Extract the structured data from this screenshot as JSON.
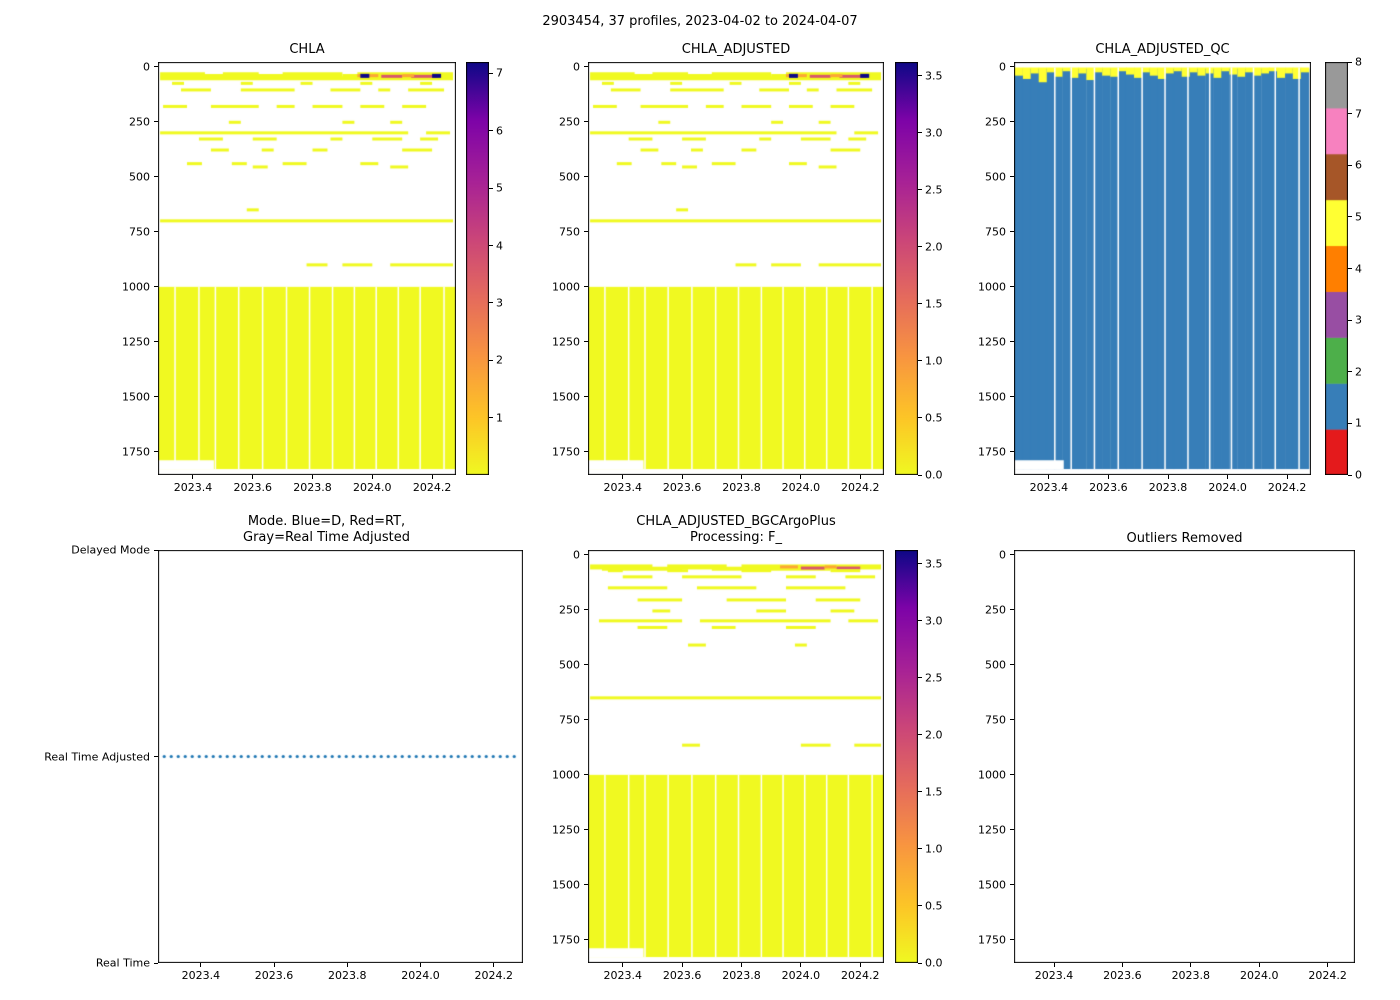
{
  "figure": {
    "suptitle": "2903454, 37 profiles, 2023-04-02 to 2024-04-07",
    "float_id": "2903454",
    "n_profiles": 37,
    "date_start": "2023-04-02",
    "date_end": "2024-04-07"
  },
  "colors": {
    "deep_yellow": "#f0f921",
    "qc_blue": "#377eb8",
    "qc_yellow": "#ffff33",
    "mode_line": "#1f77b4",
    "plasma_r_stops": [
      {
        "t": 0.0,
        "c": "#f0f921"
      },
      {
        "t": 0.14,
        "c": "#fdc527"
      },
      {
        "t": 0.29,
        "c": "#f89441"
      },
      {
        "t": 0.43,
        "c": "#e56b5d"
      },
      {
        "t": 0.57,
        "c": "#cb4679"
      },
      {
        "t": 0.71,
        "c": "#a82296"
      },
      {
        "t": 0.86,
        "c": "#7d03a8"
      },
      {
        "t": 1.0,
        "c": "#0d0887"
      }
    ],
    "qc_palette": [
      "#e41a1c",
      "#377eb8",
      "#4daf4a",
      "#984ea3",
      "#ff7f00",
      "#ffff33",
      "#a65628",
      "#f781bf",
      "#999999"
    ]
  },
  "chart_data": [
    {
      "id": "chla",
      "type": "heatmap",
      "title": "CHLA",
      "x_range": [
        2023.283,
        2024.28
      ],
      "y_range": [
        -22,
        1855
      ],
      "x_ticks": [
        "2023.4",
        "2023.6",
        "2023.8",
        "2024.0",
        "2024.2"
      ],
      "y_ticks": [
        "0",
        "250",
        "500",
        "750",
        "1000",
        "1250",
        "1500",
        "1750"
      ],
      "colorbar": {
        "vmin": 0,
        "vmax": 7.2,
        "ticks": [
          "1",
          "2",
          "3",
          "4",
          "5",
          "6",
          "7"
        ]
      },
      "deep_block": {
        "top": 1000,
        "bottom": 1828,
        "color": "#f0f921"
      },
      "notch": {
        "until": 2023.47,
        "depth": 1788
      },
      "gap_times": [
        2023.34,
        2023.42,
        2023.475,
        2023.553,
        2023.633,
        2023.713,
        2023.79,
        2023.867,
        2023.94,
        2024.013,
        2024.087,
        2024.16,
        2024.24
      ],
      "rows": [
        {
          "depth": 36,
          "h": 5,
          "segments": [
            [
              2023.29,
              2023.44
            ],
            [
              2023.5,
              2023.62
            ],
            [
              2023.7,
              2023.9
            ],
            [
              2023.95,
              2024.27
            ]
          ]
        },
        {
          "depth": 44,
          "h": 5,
          "segments": [
            [
              2023.33,
              2023.55
            ],
            [
              2023.6,
              2023.8
            ],
            [
              2023.9,
              2024.05
            ]
          ]
        },
        {
          "depth": 52,
          "h": 4,
          "segments": [
            [
              2023.29,
              2024.27
            ]
          ]
        },
        {
          "depth": 43,
          "h": 3,
          "color": "#d8576b",
          "segments": [
            [
              2024.03,
              2024.1
            ],
            [
              2024.13,
              2024.22
            ]
          ]
        },
        {
          "depth": 40,
          "h": 3,
          "color": "#fca636",
          "segments": [
            [
              2023.95,
              2024.02
            ],
            [
              2024.1,
              2024.14
            ]
          ]
        },
        {
          "depth": 41,
          "h": 4,
          "color": "#0d0887",
          "segments": [
            [
              2023.96,
              2023.99
            ],
            [
              2024.2,
              2024.23
            ]
          ]
        },
        {
          "depth": 75,
          "h": 3,
          "segments": [
            [
              2023.33,
              2023.37
            ],
            [
              2023.56,
              2023.6
            ],
            [
              2023.76,
              2023.8
            ],
            [
              2023.96,
              2024.0
            ],
            [
              2024.16,
              2024.2
            ]
          ]
        },
        {
          "depth": 105,
          "h": 3,
          "segments": [
            [
              2023.36,
              2023.46
            ],
            [
              2023.56,
              2023.74
            ],
            [
              2023.86,
              2023.96
            ],
            [
              2024.02,
              2024.06
            ],
            [
              2024.12,
              2024.24
            ]
          ]
        },
        {
          "depth": 180,
          "h": 3,
          "segments": [
            [
              2023.3,
              2023.38
            ],
            [
              2023.46,
              2023.62
            ],
            [
              2023.68,
              2023.74
            ],
            [
              2023.8,
              2023.9
            ],
            [
              2023.96,
              2024.04
            ],
            [
              2024.1,
              2024.18
            ]
          ]
        },
        {
          "depth": 252,
          "h": 3,
          "segments": [
            [
              2023.52,
              2023.56
            ],
            [
              2023.9,
              2023.94
            ],
            [
              2024.06,
              2024.1
            ]
          ]
        },
        {
          "depth": 300,
          "h": 3,
          "segments": [
            [
              2023.29,
              2024.12
            ],
            [
              2024.18,
              2024.26
            ]
          ]
        },
        {
          "depth": 328,
          "h": 3,
          "segments": [
            [
              2023.42,
              2023.5
            ],
            [
              2023.6,
              2023.68
            ],
            [
              2023.86,
              2023.9
            ],
            [
              2024.0,
              2024.1
            ],
            [
              2024.16,
              2024.22
            ]
          ]
        },
        {
          "depth": 378,
          "h": 3,
          "segments": [
            [
              2023.46,
              2023.52
            ],
            [
              2023.63,
              2023.67
            ],
            [
              2023.8,
              2023.85
            ],
            [
              2024.1,
              2024.2
            ]
          ]
        },
        {
          "depth": 440,
          "h": 3,
          "segments": [
            [
              2023.38,
              2023.43
            ],
            [
              2023.53,
              2023.58
            ],
            [
              2023.7,
              2023.78
            ],
            [
              2023.96,
              2024.02
            ]
          ]
        },
        {
          "depth": 455,
          "h": 3,
          "segments": [
            [
              2023.6,
              2023.65
            ],
            [
              2024.06,
              2024.12
            ]
          ]
        },
        {
          "depth": 650,
          "h": 3,
          "segments": [
            [
              2023.58,
              2023.62
            ]
          ]
        },
        {
          "depth": 700,
          "h": 3,
          "segments": [
            [
              2023.29,
              2024.27
            ]
          ]
        },
        {
          "depth": 900,
          "h": 3,
          "segments": [
            [
              2023.78,
              2023.85
            ],
            [
              2023.9,
              2024.0
            ],
            [
              2024.06,
              2024.27
            ]
          ]
        }
      ]
    },
    {
      "id": "chla_adjusted",
      "type": "heatmap",
      "title": "CHLA_ADJUSTED",
      "x_range": [
        2023.283,
        2024.28
      ],
      "y_range": [
        -22,
        1855
      ],
      "x_ticks": [
        "2023.4",
        "2023.6",
        "2023.8",
        "2024.0",
        "2024.2"
      ],
      "y_ticks": [
        "0",
        "250",
        "500",
        "750",
        "1000",
        "1250",
        "1500",
        "1750"
      ],
      "colorbar": {
        "vmin": 0,
        "vmax": 3.62,
        "ticks": [
          "0.0",
          "0.5",
          "1.0",
          "1.5",
          "2.0",
          "2.5",
          "3.0",
          "3.5"
        ]
      },
      "deep_block": {
        "top": 1000,
        "bottom": 1828,
        "color": "#f0f921"
      },
      "notch": {
        "until": 2023.47,
        "depth": 1788
      },
      "gap_times": [
        2023.34,
        2023.42,
        2023.475,
        2023.553,
        2023.633,
        2023.713,
        2023.79,
        2023.867,
        2023.94,
        2024.013,
        2024.087,
        2024.16,
        2024.24
      ],
      "rows_same_as": 0
    },
    {
      "id": "chla_adjusted_qc",
      "type": "qc",
      "title": "CHLA_ADJUSTED_QC",
      "x_range": [
        2023.283,
        2024.28
      ],
      "y_range": [
        -22,
        1855
      ],
      "x_ticks": [
        "2023.4",
        "2023.6",
        "2023.8",
        "2024.0",
        "2024.2"
      ],
      "y_ticks": [
        "0",
        "250",
        "500",
        "750",
        "1000",
        "1250",
        "1500",
        "1750"
      ],
      "colorbar": {
        "discrete": true,
        "vmin": 0,
        "vmax": 8,
        "ticks": [
          "0",
          "1",
          "2",
          "3",
          "4",
          "5",
          "6",
          "7",
          "8"
        ]
      },
      "profile_times": [
        2023.3,
        2023.327,
        2023.353,
        2023.38,
        2023.407,
        2023.433,
        2023.46,
        2023.487,
        2023.513,
        2023.54,
        2023.567,
        2023.593,
        2023.62,
        2023.647,
        2023.673,
        2023.7,
        2023.727,
        2023.753,
        2023.78,
        2023.807,
        2023.833,
        2023.86,
        2023.887,
        2023.913,
        2023.94,
        2023.967,
        2023.993,
        2024.02,
        2024.047,
        2024.073,
        2024.1,
        2024.127,
        2024.153,
        2024.18,
        2024.207,
        2024.233,
        2024.26
      ],
      "dominant_flag": 1,
      "surface_flag": 5,
      "top_depth": 8,
      "bottom_depth": 1828,
      "yellow_cap_depths": [
        40,
        55,
        30,
        70,
        25,
        45,
        20,
        50,
        30,
        60,
        25,
        40,
        45,
        20,
        35,
        50,
        25,
        40,
        55,
        30,
        20,
        45,
        25,
        40,
        30,
        50,
        20,
        35,
        45,
        25,
        40,
        30,
        20,
        50,
        30,
        55,
        25
      ],
      "notch": {
        "until": 2023.45,
        "depth": 1788
      },
      "gap_times": [
        2023.42,
        2023.475,
        2023.553,
        2023.633,
        2023.713,
        2023.79,
        2023.867,
        2023.94,
        2024.013,
        2024.087,
        2024.16,
        2024.24
      ]
    },
    {
      "id": "mode",
      "type": "mode",
      "title": "Mode. Blue=D, Red=RT,\nGray=Real Time Adjusted",
      "x_range": [
        2023.283,
        2024.28
      ],
      "x_ticks": [
        "2023.4",
        "2023.6",
        "2023.8",
        "2024.0",
        "2024.2"
      ],
      "y_labels": [
        "Delayed Mode",
        "Real Time Adjusted",
        "Real Time"
      ],
      "line": {
        "label": "Real Time Adjusted",
        "label_index": 1,
        "style": "dotted",
        "color": "#1f77b4",
        "t_start": 2023.3,
        "t_end": 2024.26
      }
    },
    {
      "id": "chla_adjusted_bgc",
      "type": "heatmap",
      "title": "CHLA_ADJUSTED_BGCArgoPlus\nProcessing: F_",
      "x_range": [
        2023.283,
        2024.28
      ],
      "y_range": [
        -22,
        1855
      ],
      "x_ticks": [
        "2023.4",
        "2023.6",
        "2023.8",
        "2024.0",
        "2024.2"
      ],
      "y_ticks": [
        "0",
        "250",
        "500",
        "750",
        "1000",
        "1250",
        "1500",
        "1750"
      ],
      "colorbar": {
        "vmin": 0,
        "vmax": 3.62,
        "ticks": [
          "0.0",
          "0.5",
          "1.0",
          "1.5",
          "2.0",
          "2.5",
          "3.0",
          "3.5"
        ]
      },
      "deep_block": {
        "top": 1000,
        "bottom": 1828,
        "color": "#f0f921"
      },
      "notch": {
        "until": 2023.47,
        "depth": 1788
      },
      "gap_times": [
        2023.34,
        2023.42,
        2023.475,
        2023.553,
        2023.633,
        2023.713,
        2023.79,
        2023.867,
        2023.94,
        2024.013,
        2024.087,
        2024.16,
        2024.24
      ],
      "rows": [
        {
          "depth": 55,
          "h": 5,
          "segments": [
            [
              2023.29,
              2023.5
            ],
            [
              2023.55,
              2023.75
            ],
            [
              2023.8,
              2024.27
            ]
          ]
        },
        {
          "depth": 63,
          "h": 4,
          "segments": [
            [
              2023.33,
              2023.6
            ],
            [
              2023.7,
              2024.1
            ]
          ]
        },
        {
          "depth": 60,
          "h": 3,
          "color": "#d8576b",
          "segments": [
            [
              2024.0,
              2024.08
            ],
            [
              2024.12,
              2024.2
            ]
          ]
        },
        {
          "depth": 55,
          "h": 3,
          "color": "#fca636",
          "segments": [
            [
              2023.93,
              2023.99
            ],
            [
              2024.08,
              2024.12
            ]
          ]
        },
        {
          "depth": 72,
          "h": 3,
          "segments": [
            [
              2023.35,
              2023.4
            ],
            [
              2023.55,
              2023.62
            ],
            [
              2023.8,
              2023.9
            ],
            [
              2024.1,
              2024.2
            ]
          ]
        },
        {
          "depth": 100,
          "h": 3,
          "segments": [
            [
              2023.4,
              2023.5
            ],
            [
              2023.6,
              2023.8
            ],
            [
              2023.95,
              2024.05
            ],
            [
              2024.15,
              2024.25
            ]
          ]
        },
        {
          "depth": 150,
          "h": 3,
          "segments": [
            [
              2023.35,
              2023.55
            ],
            [
              2023.65,
              2023.85
            ],
            [
              2023.95,
              2024.15
            ]
          ]
        },
        {
          "depth": 205,
          "h": 3,
          "segments": [
            [
              2023.45,
              2023.6
            ],
            [
              2023.75,
              2023.95
            ],
            [
              2024.05,
              2024.2
            ]
          ]
        },
        {
          "depth": 255,
          "h": 3,
          "segments": [
            [
              2023.5,
              2023.56
            ],
            [
              2023.85,
              2023.95
            ],
            [
              2024.1,
              2024.18
            ]
          ]
        },
        {
          "depth": 300,
          "h": 3,
          "segments": [
            [
              2023.32,
              2023.6
            ],
            [
              2023.66,
              2024.1
            ],
            [
              2024.16,
              2024.26
            ]
          ]
        },
        {
          "depth": 330,
          "h": 3,
          "segments": [
            [
              2023.45,
              2023.55
            ],
            [
              2023.7,
              2023.78
            ],
            [
              2023.95,
              2024.05
            ]
          ]
        },
        {
          "depth": 410,
          "h": 3,
          "segments": [
            [
              2023.62,
              2023.68
            ],
            [
              2023.98,
              2024.02
            ]
          ]
        },
        {
          "depth": 650,
          "h": 3,
          "segments": [
            [
              2023.29,
              2024.27
            ]
          ]
        },
        {
          "depth": 865,
          "h": 3,
          "segments": [
            [
              2023.6,
              2023.66
            ],
            [
              2024.0,
              2024.1
            ],
            [
              2024.18,
              2024.27
            ]
          ]
        }
      ]
    },
    {
      "id": "outliers",
      "type": "empty",
      "title": "Outliers Removed",
      "x_range": [
        2023.283,
        2024.28
      ],
      "y_range": [
        -22,
        1855
      ],
      "x_ticks": [
        "2023.4",
        "2023.6",
        "2023.8",
        "2024.0",
        "2024.2"
      ],
      "y_ticks": [
        "0",
        "250",
        "500",
        "750",
        "1000",
        "1250",
        "1500",
        "1750"
      ]
    }
  ]
}
